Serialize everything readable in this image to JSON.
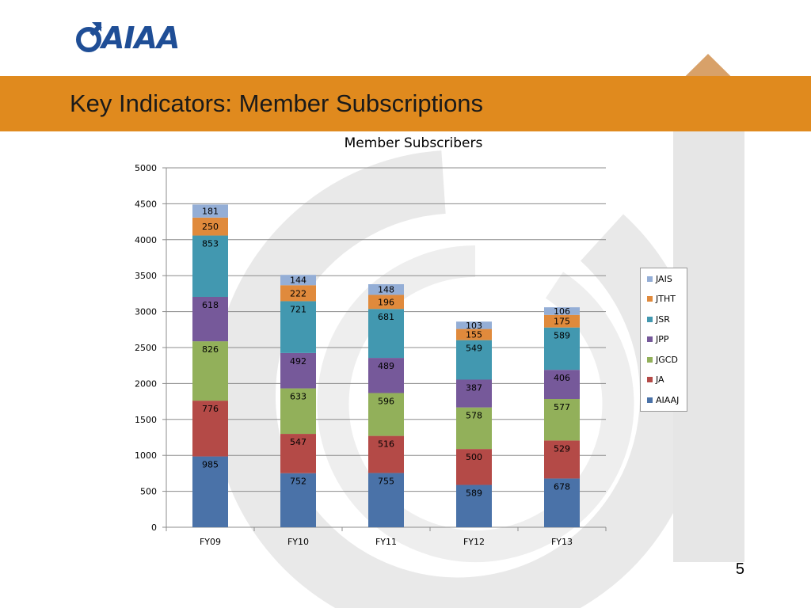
{
  "logo": {
    "text": "AIAA",
    "color": "#1f4e96"
  },
  "header": {
    "title": "Key Indicators:  Member Subscriptions",
    "band_color": "#e08a1e"
  },
  "page_number": "5",
  "chart_data": {
    "type": "bar",
    "stacked": true,
    "title": "Member Subscribers",
    "xlabel": "",
    "ylabel": "",
    "categories": [
      "FY09",
      "FY10",
      "FY11",
      "FY12",
      "FY13"
    ],
    "ylim": [
      0,
      5000
    ],
    "yticks": [
      0,
      500,
      1000,
      1500,
      2000,
      2500,
      3000,
      3500,
      4000,
      4500,
      5000
    ],
    "grid": true,
    "legend_position": "right",
    "series": [
      {
        "name": "AIAAJ",
        "color": "#4a72a8",
        "values": [
          985,
          752,
          755,
          589,
          678
        ]
      },
      {
        "name": "JA",
        "color": "#b44a47",
        "values": [
          776,
          547,
          516,
          500,
          529
        ]
      },
      {
        "name": "JGCD",
        "color": "#92b05a",
        "values": [
          826,
          633,
          596,
          578,
          577
        ]
      },
      {
        "name": "JPP",
        "color": "#76599a",
        "values": [
          618,
          492,
          489,
          387,
          406
        ]
      },
      {
        "name": "JSR",
        "color": "#4298b0",
        "values": [
          853,
          721,
          681,
          549,
          589
        ]
      },
      {
        "name": "JTHT",
        "color": "#e08a3c",
        "values": [
          250,
          222,
          196,
          155,
          175
        ]
      },
      {
        "name": "JAIS",
        "color": "#94aed6",
        "values": [
          181,
          144,
          148,
          103,
          106
        ]
      }
    ]
  }
}
